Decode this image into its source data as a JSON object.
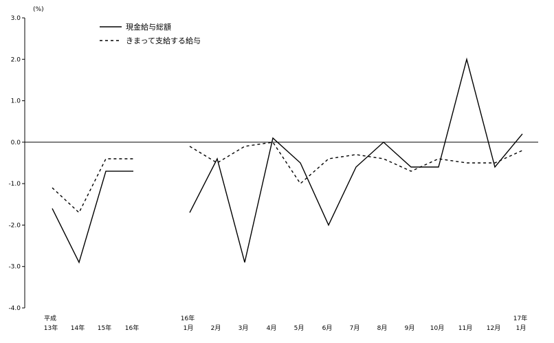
{
  "chart_data": {
    "type": "line",
    "unit_label": "(%)",
    "ylim": [
      -4.0,
      3.0
    ],
    "y_ticks": [
      "3.0",
      "2.0",
      "1.0",
      "0.0",
      "-1.0",
      "-2.0",
      "-3.0",
      "-4.0"
    ],
    "y_tick_values": [
      3.0,
      2.0,
      1.0,
      0.0,
      -1.0,
      -2.0,
      -3.0,
      -4.0
    ],
    "grid": false,
    "zero_line": true,
    "legend_position": "top-left",
    "x_labels": [
      {
        "top": "平成",
        "bottom": "13年"
      },
      {
        "top": "",
        "bottom": "14年"
      },
      {
        "top": "",
        "bottom": "15年"
      },
      {
        "top": "",
        "bottom": "16年"
      },
      {
        "top": "16年",
        "bottom": "1月"
      },
      {
        "top": "",
        "bottom": "2月"
      },
      {
        "top": "",
        "bottom": "3月"
      },
      {
        "top": "",
        "bottom": "4月"
      },
      {
        "top": "",
        "bottom": "5月"
      },
      {
        "top": "",
        "bottom": "6月"
      },
      {
        "top": "",
        "bottom": "7月"
      },
      {
        "top": "",
        "bottom": "8月"
      },
      {
        "top": "",
        "bottom": "9月"
      },
      {
        "top": "",
        "bottom": "10月"
      },
      {
        "top": "",
        "bottom": "11月"
      },
      {
        "top": "",
        "bottom": "12月"
      },
      {
        "top": "17年",
        "bottom": "1月"
      }
    ],
    "series": [
      {
        "name": "現金給与総額",
        "style": "solid",
        "color": "#000000",
        "segments": [
          [
            -1.6,
            -2.9,
            -0.7,
            -0.7
          ],
          [
            -1.7,
            -0.4,
            -2.9,
            0.1,
            -0.5,
            -2.0,
            -0.6,
            0.0,
            -0.6,
            -0.6,
            2.0,
            -0.6,
            0.2
          ]
        ]
      },
      {
        "name": "きまって支給する給与",
        "style": "dashed",
        "color": "#000000",
        "segments": [
          [
            -1.1,
            -1.7,
            -0.4,
            -0.4
          ],
          [
            -0.1,
            -0.5,
            -0.1,
            0.0,
            -1.0,
            -0.4,
            -0.3,
            -0.4,
            -0.7,
            -0.4,
            -0.5,
            -0.5,
            -0.2
          ]
        ]
      }
    ]
  }
}
